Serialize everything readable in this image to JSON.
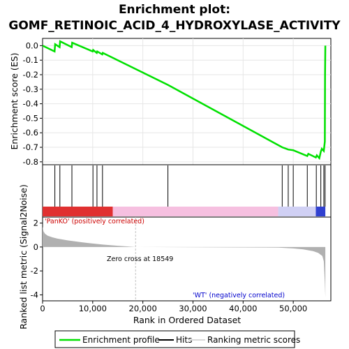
{
  "title_line1": "Enrichment plot:",
  "title_line2": "GOMF_RETINOIC_ACID_4_HYDROXYLASE_ACTIVITY",
  "colors": {
    "enrichment_line": "#00e000",
    "hits": "#000000",
    "metric_fill": "#b0b0b0",
    "positive_label": "#cc0000",
    "negative_label": "#0000cc",
    "zero_cross_line": "#c0c0c0"
  },
  "chart_data": [
    {
      "type": "line",
      "ylabel": "Enrichment score (ES)",
      "xlim": [
        0,
        57500
      ],
      "ylim": [
        -0.82,
        0.05
      ],
      "yticks": [
        0.0,
        -0.1,
        -0.2,
        -0.3,
        -0.4,
        -0.5,
        -0.6,
        -0.7,
        -0.8
      ],
      "ytick_labels": [
        "0.0",
        "-0.1",
        "-0.2",
        "-0.3",
        "-0.4",
        "-0.5",
        "-0.6",
        "-0.7",
        "-0.8"
      ],
      "grid": true,
      "series": [
        {
          "name": "Enrichment profile",
          "x": [
            0,
            2400,
            2500,
            3400,
            3500,
            5800,
            5900,
            10000,
            10100,
            10800,
            10900,
            11900,
            12000,
            25000,
            47800,
            49000,
            50000,
            52800,
            53000,
            54500,
            54700,
            55200,
            55500,
            55700,
            56100,
            56300,
            56350,
            56400
          ],
          "values": [
            0.0,
            -0.04,
            0.01,
            -0.01,
            0.03,
            -0.01,
            0.02,
            -0.04,
            -0.03,
            -0.05,
            -0.04,
            -0.06,
            -0.05,
            -0.27,
            -0.7,
            -0.715,
            -0.72,
            -0.76,
            -0.745,
            -0.77,
            -0.755,
            -0.775,
            -0.73,
            -0.71,
            -0.725,
            -0.66,
            -0.2,
            0.0
          ]
        }
      ]
    },
    {
      "type": "hits",
      "name": "Hits",
      "hit_positions": [
        2450,
        3450,
        5850,
        10050,
        10850,
        11950,
        25000,
        47800,
        49000,
        50000,
        52800,
        54600,
        55500,
        56100,
        56350
      ],
      "ranking_colorbar": [
        {
          "from": 0,
          "to": 14000,
          "color": "#e03030"
        },
        {
          "from": 14000,
          "to": 47000,
          "color": "#f6c0e0"
        },
        {
          "from": 47000,
          "to": 54500,
          "color": "#d0d0f4"
        },
        {
          "from": 54500,
          "to": 56400,
          "color": "#3040d0"
        }
      ]
    },
    {
      "type": "area",
      "name": "Ranking metric scores",
      "xlabel": "Rank in Ordered Dataset",
      "ylabel": "Ranked list metric (Signal2Noise)",
      "xlim": [
        0,
        57500
      ],
      "ylim": [
        -4.5,
        2.5
      ],
      "xticks": [
        0,
        10000,
        20000,
        30000,
        40000,
        50000
      ],
      "xtick_labels": [
        "0",
        "10,000",
        "20,000",
        "30,000",
        "40,000",
        "50,000"
      ],
      "yticks": [
        2,
        0,
        -2,
        -4
      ],
      "ytick_labels": [
        "2",
        "0",
        "-2",
        "-4"
      ],
      "x": [
        0,
        200,
        500,
        1000,
        2000,
        3000,
        5000,
        8000,
        12000,
        15000,
        18549,
        47000,
        50000,
        52000,
        54000,
        55000,
        55800,
        56100,
        56300,
        56400
      ],
      "values": [
        1.7,
        1.3,
        1.1,
        0.95,
        0.8,
        0.7,
        0.55,
        0.38,
        0.2,
        0.1,
        0.0,
        -0.05,
        -0.12,
        -0.2,
        -0.35,
        -0.5,
        -0.75,
        -1.2,
        -3.0,
        -4.2
      ],
      "annotations": {
        "positive": "'PanKO' (positively correlated)",
        "zero_cross": "Zero cross at 18549",
        "negative": "'WT' (negatively correlated)"
      }
    }
  ],
  "legend": [
    {
      "label": "Enrichment profile",
      "kind": "enrichment"
    },
    {
      "label": "Hits",
      "kind": "hits"
    },
    {
      "label": "Ranking metric scores",
      "kind": "metric"
    }
  ]
}
